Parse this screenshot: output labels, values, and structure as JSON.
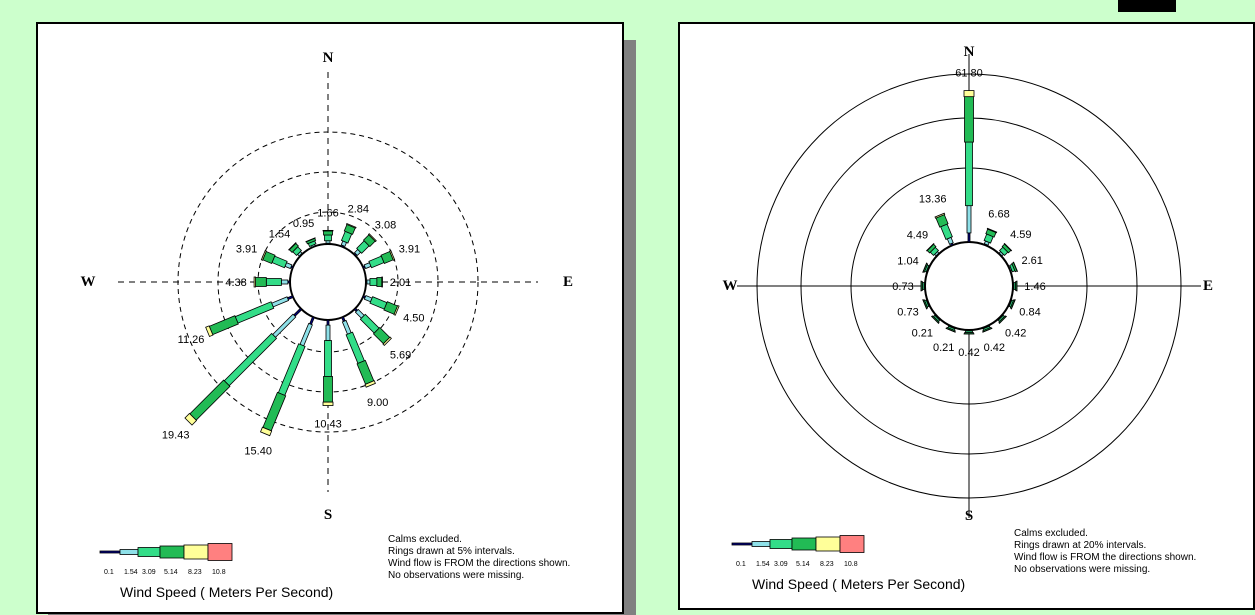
{
  "colors": {
    "background": "#ccffcc",
    "speed_bins": [
      "#000080",
      "#8ee0e8",
      "#33dd88",
      "#22bb55",
      "#ffff99",
      "#ff8080"
    ]
  },
  "chart_data": [
    {
      "type": "wind-rose",
      "compass": {
        "n": "N",
        "s": "S",
        "e": "E",
        "w": "W"
      },
      "ring_interval_percent": 5,
      "ring_style": "dashed",
      "ring_count": 3,
      "directions": [
        "N",
        "NNE",
        "NE",
        "ENE",
        "E",
        "ESE",
        "SE",
        "SSE",
        "S",
        "SSW",
        "SW",
        "WSW",
        "W",
        "WNW",
        "NW",
        "NNW"
      ],
      "frequency_labels": [
        "1.66",
        "2.84",
        "3.08",
        "3.91",
        "2.01",
        "4.50",
        "5.69",
        "9.00",
        "10.43",
        "15.40",
        "19.43",
        "11.26",
        "4.38",
        "3.91",
        "1.54",
        "0.95"
      ],
      "frequencies": [
        1.66,
        2.84,
        3.08,
        3.91,
        2.01,
        4.5,
        5.69,
        9.0,
        10.43,
        15.4,
        19.43,
        11.26,
        4.38,
        3.91,
        1.54,
        0.95
      ],
      "legend": {
        "bin_labels": [
          "0.1",
          "1.54",
          "3.09",
          "5.14",
          "8.23",
          "10.8"
        ],
        "title": "Wind Speed  ( Meters Per Second)"
      },
      "notes": [
        "Calms excluded.",
        "Rings drawn at  5% intervals.",
        "Wind flow is FROM the directions shown.",
        "No observations were missing."
      ]
    },
    {
      "type": "wind-rose",
      "compass": {
        "n": "N",
        "s": "S",
        "e": "E",
        "w": "W"
      },
      "ring_interval_percent": 20,
      "ring_style": "solid",
      "ring_count": 3,
      "directions": [
        "N",
        "NNE",
        "NE",
        "ENE",
        "E",
        "ESE",
        "SE",
        "SSE",
        "S",
        "SSW",
        "SW",
        "WSW",
        "W",
        "WNW",
        "NW",
        "NNW"
      ],
      "frequency_labels": [
        "61.80",
        "6.68",
        "4.59",
        "2.61",
        "1.46",
        "0.84",
        "0.42",
        "0.42",
        "0.42",
        "0.21",
        "0.21",
        "0.73",
        "0.73",
        "1.04",
        "4.49",
        "13.36"
      ],
      "frequencies": [
        61.8,
        6.68,
        4.59,
        2.61,
        1.46,
        0.84,
        0.42,
        0.42,
        0.42,
        0.21,
        0.21,
        0.73,
        0.73,
        1.04,
        4.49,
        13.36
      ],
      "legend": {
        "bin_labels": [
          "0.1",
          "1.54",
          "3.09",
          "5.14",
          "8.23",
          "10.8"
        ],
        "title": "Wind Speed  ( Meters Per Second)"
      },
      "notes": [
        "Calms excluded.",
        "Rings drawn at 20% intervals.",
        "Wind flow is FROM the directions shown.",
        "No observations were missing."
      ]
    }
  ]
}
